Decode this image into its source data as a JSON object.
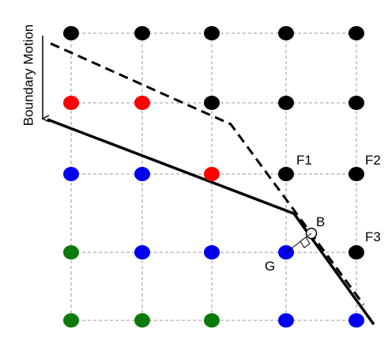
{
  "vertical_label": "Boundary Motion",
  "point_labels": {
    "f1": "F1",
    "f2": "F2",
    "f3": "F3",
    "b": "B",
    "g": "G"
  },
  "colors": {
    "black": "#000000",
    "red": "#ff0000",
    "blue": "#0000ee",
    "green": "#0a7a0a",
    "grid": "#999999"
  },
  "grid_nodes": [
    [
      "black",
      "black",
      "black",
      "black",
      "black"
    ],
    [
      "red",
      "red",
      "black",
      "black",
      "black"
    ],
    [
      "blue",
      "blue",
      "red",
      "black",
      "black"
    ],
    [
      "green",
      "blue",
      "blue",
      "blue",
      "black"
    ],
    [
      "green",
      "green",
      "green",
      "blue",
      "blue"
    ]
  ]
}
